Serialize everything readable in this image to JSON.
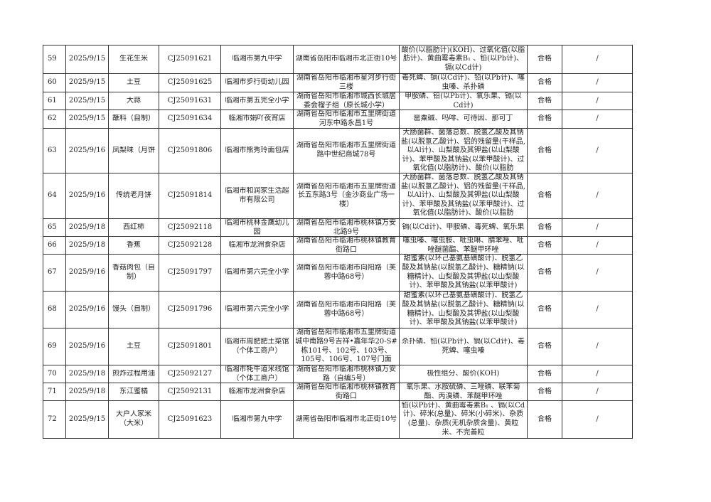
{
  "rows": [
    {
      "no": "59",
      "date": "2025/9/15",
      "name": "生花生米",
      "code": "CJ25091621",
      "org": "临湘市第九中学",
      "addr": "湖南省岳阳市临湘市北正街10号",
      "items": "酸价(以脂肪计)(KOH)、过氧化值(以脂肪计)、黄曲霉毒素B₁ 、铅(以Pb计)、镉(以Cd计)",
      "result": "合格",
      "remark": "/"
    },
    {
      "no": "60",
      "date": "2025/9/15",
      "name": "土豆",
      "code": "CJ25091625",
      "org": "临湘市步行街幼儿园",
      "addr": "湖南省岳阳市临湘市星河步行街三楼",
      "items": "毒死蜱、镉(以Cd计)、铅(以Pb计)、噻虫嗪、杀扑磷",
      "result": "合格",
      "remark": "/"
    },
    {
      "no": "61",
      "date": "2025/9/15",
      "name": "大蒜",
      "code": "CJ25091631",
      "org": "临湘市第五完全小学",
      "addr": "湖南省岳阳市临湘市城西长城居委会榴子组（原长城小学）",
      "items": "甲胺磷、铅(以Pb计)、氧乐果、镉(以Cd计)",
      "result": "合格",
      "remark": "/"
    },
    {
      "no": "62",
      "date": "2025/9/15",
      "name": "蘸料（自制）",
      "code": "CJ25091634",
      "org": "临湘市娟吖夜宵店",
      "addr": "湖南省岳阳市临湘市五里牌街道河东中路永昌1号",
      "items": "罂粟碱、吗啡、可待因、那可丁",
      "result": "合格",
      "remark": "/"
    },
    {
      "no": "63",
      "date": "2025/9/16",
      "name": "凤梨味（月饼",
      "code": "CJ25091806",
      "org": "临湘市熊秀玲面包店",
      "addr": "湖南省岳阳市临湘市五里牌街道路中世纪商城78号",
      "items": "大肠菌群、菌落总数、脱氢乙酸及其钠盐(以脱氢乙酸计)、铝的残留量(干样品,以Al计)、山梨酸及其钾盐(以山梨酸计)、苯甲酸及其钠盐(以苯甲酸计)、过氧化值(以脂肪计)、酸价(以脂肪",
      "result": "合格",
      "remark": "/"
    },
    {
      "no": "64",
      "date": "2025/9/16",
      "name": "传统老月饼",
      "code": "CJ25091814",
      "org": "临湘市和润家生活超市有限公司",
      "addr": "湖南省岳阳市临湘市五里牌街道长五东路3号（金沙商业广场一楼）",
      "items": "大肠菌群、菌落总数、脱氢乙酸及其钠盐(以脱氢乙酸计)、铝的残留量(干样品,以Al计)、山梨酸及其钾盐(以山梨酸计)、苯甲酸及其钠盐(以苯甲酸计)、过氧化值(以脂肪计)、酸价(以脂肪",
      "result": "合格",
      "remark": "/"
    },
    {
      "no": "65",
      "date": "2025/9/18",
      "name": "西红柿",
      "code": "CJ25092118",
      "org": "临湘市桃林金鹰幼儿园",
      "addr": "湖南省岳阳市临湘市桃林镇万安北路9号",
      "items": "镉(以Cd计)、甲胺磷、毒死蜱、氧乐果",
      "result": "合格",
      "remark": "/"
    },
    {
      "no": "66",
      "date": "2025/9/18",
      "name": "香蕉",
      "code": "CJ25092128",
      "org": "临湘市龙洲食杂店",
      "addr": "湖南省岳阳市临湘市桃林镇教育街路口",
      "items": "噻虫嗪、噻虫胺、吡虫啉、腈苯唑、吡唑醚菌酯、苯醚甲环唑",
      "result": "合格",
      "remark": "/"
    },
    {
      "no": "67",
      "date": "2025/9/16",
      "name": "香菇肉包（自制）",
      "code": "CJ25091797",
      "org": "临湘市第六完全小学",
      "addr": "湖南省岳阳市临湘市向阳路（芙蓉中路68号）",
      "items": "甜蜜素(以环己基氨基磺酸计)、脱氢乙酸及其钠盐(以脱氢乙酸计)、糖精钠(以糖精计)、山梨酸及其钾盐(以山梨酸计)、苯甲酸及其钠盐(以苯甲酸计)",
      "result": "合格",
      "remark": "/"
    },
    {
      "no": "68",
      "date": "2025/9/16",
      "name": "馒头（自制）",
      "code": "CJ25091796",
      "org": "临湘市第六完全小学",
      "addr": "湖南省岳阳市临湘市向阳路（芙蓉中路68号）",
      "items": "甜蜜素(以环己基氨基磺酸计)、脱氢乙酸及其钠盐(以脱氢乙酸计)、糖精钠(以糖精计)、山梨酸及其钾盐(以山梨酸计)、苯甲酸及其钠盐(以苯甲酸计)",
      "result": "合格",
      "remark": "/"
    },
    {
      "no": "69",
      "date": "2025/9/16",
      "name": "土豆",
      "code": "CJ25091801",
      "org": "临湘市周肥肥土菜馆（个体工商户）",
      "addr": "湖南省岳阳市临湘市五里牌街道城中南路9号吉祥•嘉年华20-S#栋101号、102号、103号、105号、106号、107号门面",
      "items": "杀扑磷、铅(以Pb计)、镉(以Cd计)、毒死蜱、噻虫嗪",
      "result": "合格",
      "remark": "/"
    },
    {
      "no": "70",
      "date": "2025/9/18",
      "name": "煎炸过程用油",
      "code": "CJ25092127",
      "org": "临湘市牦牛道米线馆（个体工商户）",
      "addr": "湖南省岳阳市临湘市桃林镇万安路（自编5号）",
      "items": "极性组分、酸价(KOH)",
      "result": "合格",
      "remark": "/"
    },
    {
      "no": "71",
      "date": "2025/9/18",
      "name": "东江蜜橘",
      "code": "CJ25092131",
      "org": "临湘市龙洲食杂店",
      "addr": "湖南省岳阳市临湘市桃林镇教育街路口",
      "items": "氧乐果、水胺硫磷、三唑磷、联苯菊酯、丙溴磷、苯醚甲环唑",
      "result": "合格",
      "remark": "/"
    },
    {
      "no": "72",
      "date": "2025/9/15",
      "name": "大户人家米（大米）",
      "code": "CJ25091623",
      "org": "临湘市第九中学",
      "addr": "湖南省岳阳市临湘市北正街10号",
      "items": "铅(以Pb计)、黄曲霉毒素B₁ 、镉(以Cd计)、碎米(总量)、碎米(小碎米)、杂质(总量)、杂质(无机杂质含量)、黄粒米、不完善粒",
      "result": "合格",
      "remark": "/"
    }
  ]
}
